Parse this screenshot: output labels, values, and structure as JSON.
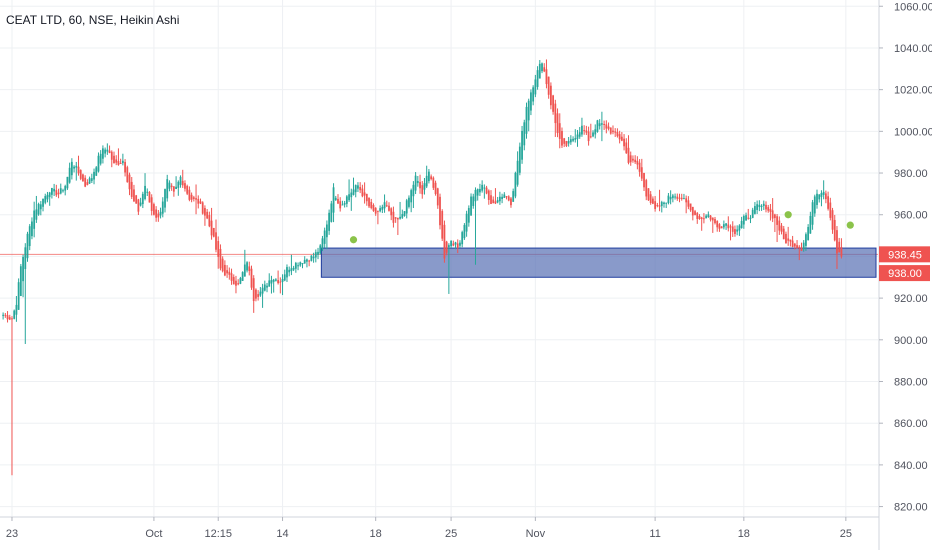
{
  "chart_data": {
    "type": "candlestick",
    "title": "CEAT LTD, 60, NSE, Heikin Ashi",
    "ylim": [
      815,
      1063
    ],
    "y_ticks": [
      "1060.00",
      "1040.00",
      "1020.00",
      "1000.00",
      "980.00",
      "960.00",
      "940.00",
      "920.00",
      "900.00",
      "880.00",
      "860.00",
      "840.00",
      "820.00"
    ],
    "x_ticks": [
      {
        "label": "23",
        "bar": 4
      },
      {
        "label": "Oct",
        "bar": 68
      },
      {
        "label": "12:15",
        "bar": 97
      },
      {
        "label": "14",
        "bar": 126
      },
      {
        "label": "18",
        "bar": 168
      },
      {
        "label": "25",
        "bar": 202
      },
      {
        "label": "Nov",
        "bar": 240
      },
      {
        "label": "11",
        "bar": 294
      },
      {
        "label": "18",
        "bar": 334
      },
      {
        "label": "25",
        "bar": 380
      }
    ],
    "bars_total": 395,
    "anchors": [
      [
        0,
        912
      ],
      [
        4,
        910
      ],
      [
        6,
        918
      ],
      [
        8,
        935
      ],
      [
        11,
        950
      ],
      [
        14,
        962
      ],
      [
        17,
        966
      ],
      [
        21,
        972
      ],
      [
        25,
        970
      ],
      [
        28,
        974
      ],
      [
        31,
        986
      ],
      [
        34,
        980
      ],
      [
        37,
        974
      ],
      [
        40,
        978
      ],
      [
        44,
        990
      ],
      [
        47,
        992
      ],
      [
        50,
        984
      ],
      [
        54,
        986
      ],
      [
        58,
        968
      ],
      [
        61,
        962
      ],
      [
        64,
        974
      ],
      [
        67,
        962
      ],
      [
        70,
        958
      ],
      [
        74,
        976
      ],
      [
        77,
        970
      ],
      [
        80,
        978
      ],
      [
        84,
        968
      ],
      [
        88,
        966
      ],
      [
        92,
        958
      ],
      [
        95,
        948
      ],
      [
        98,
        934
      ],
      [
        102,
        930
      ],
      [
        106,
        926
      ],
      [
        110,
        938
      ],
      [
        113,
        920
      ],
      [
        117,
        924
      ],
      [
        121,
        930
      ],
      [
        125,
        928
      ],
      [
        128,
        934
      ],
      [
        131,
        936
      ],
      [
        135,
        938
      ],
      [
        140,
        940
      ],
      [
        143,
        944
      ],
      [
        146,
        956
      ],
      [
        149,
        972
      ],
      [
        152,
        964
      ],
      [
        156,
        970
      ],
      [
        160,
        974
      ],
      [
        163,
        968
      ],
      [
        166,
        962
      ],
      [
        169,
        960
      ],
      [
        172,
        966
      ],
      [
        176,
        956
      ],
      [
        179,
        958
      ],
      [
        183,
        968
      ],
      [
        186,
        978
      ],
      [
        189,
        970
      ],
      [
        192,
        982
      ],
      [
        196,
        964
      ],
      [
        199,
        940
      ],
      [
        202,
        948
      ],
      [
        205,
        944
      ],
      [
        208,
        956
      ],
      [
        211,
        968
      ],
      [
        214,
        972
      ],
      [
        217,
        974
      ],
      [
        220,
        964
      ],
      [
        223,
        968
      ],
      [
        226,
        970
      ],
      [
        229,
        966
      ],
      [
        232,
        986
      ],
      [
        236,
        1012
      ],
      [
        240,
        1026
      ],
      [
        243,
        1034
      ],
      [
        246,
        1018
      ],
      [
        249,
        1004
      ],
      [
        252,
        992
      ],
      [
        255,
        994
      ],
      [
        258,
        998
      ],
      [
        261,
        1002
      ],
      [
        264,
        996
      ],
      [
        268,
        1004
      ],
      [
        272,
        1002
      ],
      [
        276,
        998
      ],
      [
        279,
        996
      ],
      [
        282,
        986
      ],
      [
        286,
        984
      ],
      [
        290,
        970
      ],
      [
        294,
        962
      ],
      [
        298,
        966
      ],
      [
        302,
        970
      ],
      [
        306,
        968
      ],
      [
        310,
        962
      ],
      [
        314,
        958
      ],
      [
        318,
        960
      ],
      [
        322,
        954
      ],
      [
        326,
        956
      ],
      [
        330,
        952
      ],
      [
        334,
        958
      ],
      [
        337,
        960
      ],
      [
        340,
        964
      ],
      [
        344,
        964
      ],
      [
        348,
        958
      ],
      [
        352,
        948
      ],
      [
        356,
        946
      ],
      [
        360,
        944
      ],
      [
        363,
        954
      ],
      [
        366,
        970
      ],
      [
        370,
        972
      ],
      [
        372,
        964
      ],
      [
        374,
        954
      ],
      [
        376,
        942
      ],
      [
        378,
        940
      ]
    ],
    "low_spikes": [
      {
        "bar": 4,
        "low": 835
      },
      {
        "bar": 10,
        "low": 898
      },
      {
        "bar": 201,
        "low": 922
      },
      {
        "bar": 213,
        "low": 936
      }
    ],
    "dots": [
      {
        "bar": 158,
        "value": 948
      },
      {
        "bar": 354,
        "value": 960
      },
      {
        "bar": 382,
        "value": 955
      }
    ],
    "zone": {
      "y1": 944,
      "y2": 930,
      "bar_start": 144
    },
    "reference_line": 941,
    "tags": [
      {
        "label": "938.45",
        "value": 941,
        "color": "#ef5350"
      },
      {
        "label": "938.00",
        "value": 932,
        "color": "#ef5350"
      }
    ],
    "colors": {
      "up": "#26a69a",
      "down": "#ef5350",
      "zone_fill": "#5c73b6",
      "zone_stroke": "#1e3c9e",
      "dot": "#8bc34a",
      "grid": "#eef0f3"
    }
  }
}
